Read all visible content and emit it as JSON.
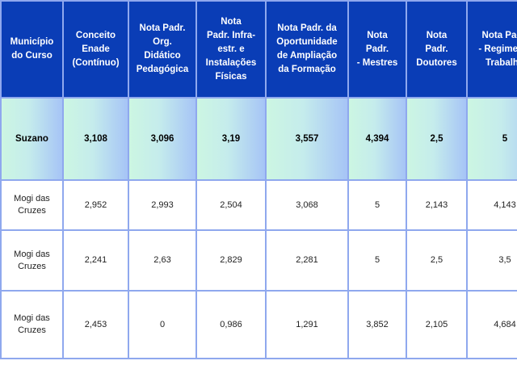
{
  "table": {
    "headers": [
      [
        "Município",
        "do Curso"
      ],
      [
        "Conceito",
        "Enade",
        "(Contínuo)"
      ],
      [
        "Nota Padr.",
        "Org.",
        "Didático",
        "Pedagógica"
      ],
      [
        "Nota",
        "Padr. Infra-",
        "estr. e",
        "Instalações",
        "Físicas"
      ],
      [
        "Nota Padr. da",
        "Oportunidade",
        "de Ampliação",
        "da Formação"
      ],
      [
        "Nota",
        "Padr.",
        "- Mestres"
      ],
      [
        "Nota",
        "Padr.",
        "Doutores"
      ],
      [
        "Nota Padr.",
        "- Regime de",
        "Trabalho"
      ]
    ],
    "highlight_row": [
      "Suzano",
      "3,108",
      "3,096",
      "3,19",
      "3,557",
      "4,394",
      "2,5",
      "5"
    ],
    "rows": [
      [
        [
          "Mogi das",
          "Cruzes"
        ],
        "2,952",
        "2,993",
        "2,504",
        "3,068",
        "5",
        "2,143",
        "4,143"
      ],
      [
        [
          "Mogi das",
          "Cruzes"
        ],
        "2,241",
        "2,63",
        "2,829",
        "2,281",
        "5",
        "2,5",
        "3,5"
      ],
      [
        [
          "Mogi das",
          "Cruzes"
        ],
        "2,453",
        "0",
        "0,986",
        "1,291",
        "3,852",
        "2,105",
        "4,684"
      ]
    ]
  }
}
